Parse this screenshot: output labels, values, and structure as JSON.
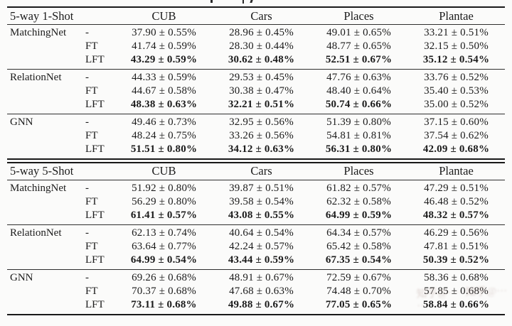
{
  "page": {
    "ink_color": "#1b1b1b",
    "rule_color": "#191919",
    "background_color": "#fbfbfa"
  },
  "watermark": {
    "text": "知乎@·····知乎@·····",
    "color": "#b9a39e"
  },
  "tables": [
    {
      "title": "5-way 1-Shot",
      "columns": [
        "CUB",
        "Cars",
        "Places",
        "Plantae"
      ],
      "methods": [
        {
          "name": "MatchingNet",
          "rows": [
            {
              "variant": "-",
              "bold": [
                false,
                false,
                false,
                false
              ],
              "values": [
                "37.90 ± 0.55%",
                "28.96 ± 0.45%",
                "49.01 ± 0.65%",
                "33.21 ± 0.51%"
              ]
            },
            {
              "variant": "FT",
              "bold": [
                false,
                false,
                false,
                false
              ],
              "values": [
                "41.74 ± 0.59%",
                "28.30 ± 0.44%",
                "48.77 ± 0.65%",
                "32.15 ± 0.50%"
              ]
            },
            {
              "variant": "LFT",
              "bold": [
                true,
                true,
                true,
                true
              ],
              "values": [
                "43.29 ± 0.59%",
                "30.62 ± 0.48%",
                "52.51 ± 0.67%",
                "35.12 ± 0.54%"
              ]
            }
          ]
        },
        {
          "name": "RelationNet",
          "rows": [
            {
              "variant": "-",
              "bold": [
                false,
                false,
                false,
                false
              ],
              "values": [
                "44.33 ± 0.59%",
                "29.53 ± 0.45%",
                "47.76 ± 0.63%",
                "33.76 ± 0.52%"
              ]
            },
            {
              "variant": "FT",
              "bold": [
                false,
                false,
                false,
                false
              ],
              "values": [
                "44.67 ± 0.58%",
                "30.38 ± 0.47%",
                "48.40 ± 0.64%",
                "35.40 ± 0.53%"
              ]
            },
            {
              "variant": "LFT",
              "bold": [
                true,
                true,
                true,
                false
              ],
              "values": [
                "48.38 ± 0.63%",
                "32.21 ± 0.51%",
                "50.74 ± 0.66%",
                "35.00 ± 0.52%"
              ]
            }
          ]
        },
        {
          "name": "GNN",
          "rows": [
            {
              "variant": "-",
              "bold": [
                false,
                false,
                false,
                false
              ],
              "values": [
                "49.46 ± 0.73%",
                "32.95 ± 0.56%",
                "51.39 ± 0.80%",
                "37.15 ± 0.60%"
              ]
            },
            {
              "variant": "FT",
              "bold": [
                false,
                false,
                false,
                false
              ],
              "values": [
                "48.24 ± 0.75%",
                "33.26 ± 0.56%",
                "54.81 ± 0.81%",
                "37.54 ± 0.62%"
              ]
            },
            {
              "variant": "LFT",
              "bold": [
                true,
                true,
                true,
                true
              ],
              "values": [
                "51.51 ± 0.80%",
                "34.12 ± 0.63%",
                "56.31 ± 0.80%",
                "42.09 ± 0.68%"
              ]
            }
          ]
        }
      ]
    },
    {
      "title": "5-way 5-Shot",
      "columns": [
        "CUB",
        "Cars",
        "Places",
        "Plantae"
      ],
      "methods": [
        {
          "name": "MatchingNet",
          "rows": [
            {
              "variant": "-",
              "bold": [
                false,
                false,
                false,
                false
              ],
              "values": [
                "51.92 ± 0.80%",
                "39.87 ± 0.51%",
                "61.82 ± 0.57%",
                "47.29 ± 0.51%"
              ]
            },
            {
              "variant": "FT",
              "bold": [
                false,
                false,
                false,
                false
              ],
              "values": [
                "56.29 ± 0.80%",
                "39.58 ± 0.54%",
                "62.32 ± 0.58%",
                "46.48 ± 0.52%"
              ]
            },
            {
              "variant": "LFT",
              "bold": [
                true,
                true,
                true,
                true
              ],
              "values": [
                "61.41 ± 0.57%",
                "43.08 ± 0.55%",
                "64.99 ± 0.59%",
                "48.32 ± 0.57%"
              ]
            }
          ]
        },
        {
          "name": "RelationNet",
          "rows": [
            {
              "variant": "-",
              "bold": [
                false,
                false,
                false,
                false
              ],
              "values": [
                "62.13 ± 0.74%",
                "40.64 ± 0.54%",
                "64.34 ± 0.57%",
                "46.29 ± 0.56%"
              ]
            },
            {
              "variant": "FT",
              "bold": [
                false,
                false,
                false,
                false
              ],
              "values": [
                "63.64 ± 0.77%",
                "42.24 ± 0.57%",
                "65.42 ± 0.58%",
                "47.81 ± 0.51%"
              ]
            },
            {
              "variant": "LFT",
              "bold": [
                true,
                true,
                true,
                true
              ],
              "values": [
                "64.99 ± 0.54%",
                "43.44 ± 0.59%",
                "67.35 ± 0.54%",
                "50.39 ± 0.52%"
              ]
            }
          ]
        },
        {
          "name": "GNN",
          "rows": [
            {
              "variant": "-",
              "bold": [
                false,
                false,
                false,
                false
              ],
              "values": [
                "69.26 ± 0.68%",
                "48.91 ± 0.67%",
                "72.59 ± 0.67%",
                "58.36 ± 0.68%"
              ]
            },
            {
              "variant": "FT",
              "bold": [
                false,
                false,
                false,
                false
              ],
              "values": [
                "70.37 ± 0.68%",
                "47.68 ± 0.63%",
                "74.48 ± 0.70%",
                "57.85 ± 0.68%"
              ]
            },
            {
              "variant": "LFT",
              "bold": [
                true,
                true,
                true,
                true
              ],
              "values": [
                "73.11 ± 0.68%",
                "49.88 ± 0.67%",
                "77.05 ± 0.65%",
                "58.84 ± 0.66%"
              ]
            }
          ]
        }
      ]
    }
  ]
}
